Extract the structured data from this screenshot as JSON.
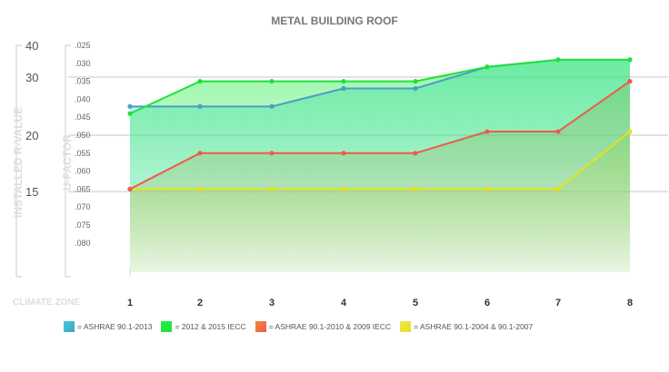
{
  "chart_data": {
    "type": "line",
    "title": "METAL BUILDING ROOF",
    "xlabel": "CLIMATE ZONE",
    "ylabel": "U-FACTOR",
    "ylabel_secondary": "INSTALLED R-VALUE",
    "categories": [
      "1",
      "2",
      "3",
      "4",
      "5",
      "6",
      "7",
      "8"
    ],
    "yticks": [
      ".025",
      ".030",
      ".035",
      ".040",
      ".045",
      ".050",
      ".055",
      ".060",
      ".065",
      ".070",
      ".075",
      ".080"
    ],
    "ylim": [
      0.025,
      0.08
    ],
    "y_inverted": true,
    "secondary_ticks": [
      {
        "label": "40",
        "u": 0.025
      },
      {
        "label": "30",
        "u": 0.0338
      },
      {
        "label": "20",
        "u": 0.05
      },
      {
        "label": "15",
        "u": 0.0657
      }
    ],
    "series": [
      {
        "name": "= ASHRAE 90.1-2013",
        "color": "#4a9cc8",
        "fill": "#3ccfd8",
        "values": [
          0.042,
          0.042,
          0.042,
          0.037,
          0.037,
          0.031,
          0.029,
          0.029
        ]
      },
      {
        "name": "= 2012 & 2015 IECC",
        "color": "#1ee23a",
        "fill": "#22ee44",
        "values": [
          0.044,
          0.035,
          0.035,
          0.035,
          0.035,
          0.031,
          0.029,
          0.029
        ]
      },
      {
        "name": "= ASHRAE 90.1-2010 & 2009 IECC",
        "color": "#ef5a4a",
        "fill": "#f08a40",
        "values": [
          0.065,
          0.055,
          0.055,
          0.055,
          0.055,
          0.049,
          0.049,
          0.035
        ]
      },
      {
        "name": "= ASHRAE 90.1-2004 & 90.1-2007",
        "color": "#e6e020",
        "fill": "#eee84a",
        "values": [
          0.065,
          0.065,
          0.065,
          0.065,
          0.065,
          0.065,
          0.065,
          0.049
        ]
      }
    ],
    "grid": true,
    "legend": "bottom"
  }
}
